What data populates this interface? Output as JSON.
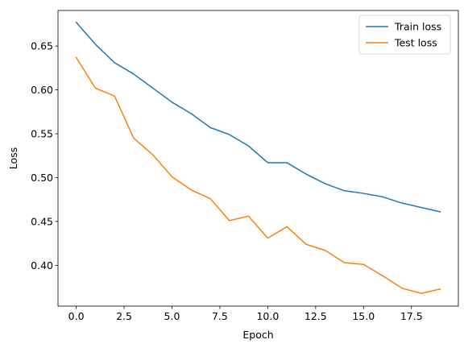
{
  "chart_data": {
    "type": "line",
    "title": "",
    "xlabel": "Epoch",
    "ylabel": "Loss",
    "xlim": [
      -0.95,
      19.95
    ],
    "ylim": [
      0.3535,
      0.6905
    ],
    "x_ticks": [
      0.0,
      2.5,
      5.0,
      7.5,
      10.0,
      12.5,
      15.0,
      17.5
    ],
    "x_tick_labels": [
      "0.0",
      "2.5",
      "5.0",
      "7.5",
      "10.0",
      "12.5",
      "15.0",
      "17.5"
    ],
    "y_ticks": [
      0.4,
      0.45,
      0.5,
      0.55,
      0.6,
      0.65
    ],
    "y_tick_labels": [
      "0.40",
      "0.45",
      "0.50",
      "0.55",
      "0.60",
      "0.65"
    ],
    "grid": false,
    "legend_position": "top-right",
    "x": [
      0,
      1,
      2,
      3,
      4,
      5,
      6,
      7,
      8,
      9,
      10,
      11,
      12,
      13,
      14,
      15,
      16,
      17,
      18,
      19
    ],
    "series": [
      {
        "name": "Train loss",
        "color": "#1f77b4",
        "values": [
          0.677,
          0.652,
          0.631,
          0.618,
          0.602,
          0.586,
          0.573,
          0.557,
          0.549,
          0.536,
          0.517,
          0.517,
          0.504,
          0.493,
          0.485,
          0.482,
          0.478,
          0.471,
          0.466,
          0.461
        ]
      },
      {
        "name": "Test loss",
        "color": "#ff7f0e",
        "values": [
          0.637,
          0.602,
          0.593,
          0.545,
          0.526,
          0.501,
          0.486,
          0.476,
          0.451,
          0.456,
          0.431,
          0.444,
          0.424,
          0.417,
          0.403,
          0.401,
          0.388,
          0.374,
          0.368,
          0.373
        ]
      }
    ]
  }
}
